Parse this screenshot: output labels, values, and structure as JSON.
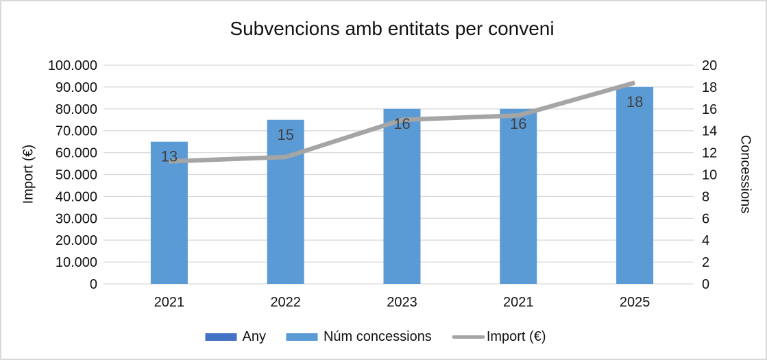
{
  "title": "Subvencions amb entitats per conveni",
  "axes": {
    "left": {
      "title": "Import (€)",
      "ticks_top_to_bottom": [
        "100.000",
        "90.000",
        "80.000",
        "70.000",
        "60.000",
        "50.000",
        "40.000",
        "30.000",
        "20.000",
        "10.000",
        "0"
      ]
    },
    "right": {
      "title": "Concessions",
      "ticks_top_to_bottom": [
        "20",
        "18",
        "16",
        "14",
        "12",
        "10",
        "8",
        "6",
        "4",
        "2",
        "0"
      ]
    }
  },
  "legend": {
    "items": [
      {
        "label": "Any",
        "marker": "bar",
        "color": "#4472C4"
      },
      {
        "label": "Núm concessions",
        "marker": "bar",
        "color": "#5B9BD5"
      },
      {
        "label": "Import (€)",
        "marker": "line",
        "color": "#A5A5A5"
      }
    ]
  },
  "chart_data": {
    "type": "combo",
    "title": "Subvencions amb entitats per conveni",
    "categories": [
      "2021",
      "2022",
      "2023",
      "2021",
      "2025"
    ],
    "series": [
      {
        "name": "Núm concessions",
        "type": "bar",
        "axis": "right",
        "color": "#5B9BD5",
        "values": [
          13,
          15,
          16,
          16,
          18
        ],
        "data_labels": [
          "13",
          "15",
          "16",
          "16",
          "18"
        ]
      },
      {
        "name": "Import (€)",
        "type": "line",
        "axis": "left",
        "color": "#A5A5A5",
        "values": [
          56000,
          58000,
          75000,
          77000,
          92000
        ]
      },
      {
        "name": "Any",
        "type": "bar",
        "axis": "left",
        "color": "#4472C4",
        "values": []
      }
    ],
    "ylabel_left": "Import (€)",
    "ylabel_right": "Concessions",
    "ylim_left": [
      0,
      100000
    ],
    "ylim_right": [
      0,
      20
    ],
    "ytick_step_left": 10000,
    "ytick_step_right": 2,
    "grid": true,
    "legend_position": "bottom"
  },
  "colors": {
    "bar": "#5B9BD5",
    "line": "#A5A5A5",
    "any_series": "#4472C4",
    "grid": "#D9D9D9",
    "axis_line": "#D9D9D9",
    "text": "#111111",
    "data_label": "#404040",
    "border": "#D9D9D9",
    "background": "#FFFFFF"
  }
}
